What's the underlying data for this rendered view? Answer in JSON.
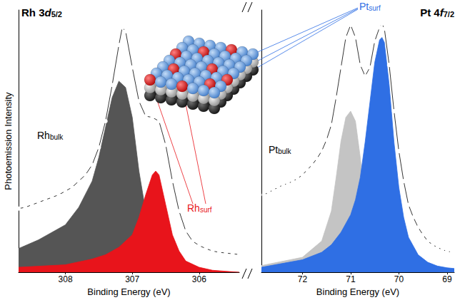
{
  "chart_data": [
    {
      "type": "line",
      "title": [
        {
          "text": "Rh 3"
        },
        {
          "text": "d",
          "style": "italic"
        },
        {
          "text": "5/2",
          "style": "subscript"
        }
      ],
      "xlabel": "Binding Energy (eV)",
      "ylabel": "Photoemission Intensity",
      "xlim": [
        308.7,
        305.4
      ],
      "xticks": [
        308,
        307,
        306
      ],
      "ylim": [
        0,
        105
      ],
      "tick_labels": "x",
      "grid": false,
      "series": [
        {
          "type": "area",
          "color": "#555555",
          "label": {
            "text": "Rh",
            "subscript": "bulk"
          },
          "x": [
            308.7,
            308.4,
            308.0,
            307.8,
            307.6,
            307.5,
            307.4,
            307.3,
            307.2,
            307.1,
            307.0,
            306.9,
            306.8,
            306.7,
            306.6,
            306.5,
            306.3,
            306.0,
            305.4
          ],
          "values": [
            9.5,
            13,
            19,
            26,
            36.5,
            46,
            58,
            70,
            76.5,
            74,
            62,
            40.5,
            24.5,
            14,
            8,
            4.5,
            2,
            0.5,
            0
          ]
        },
        {
          "type": "area",
          "color": "#e8141b",
          "label": {
            "text": "Rh",
            "subscript": "surf"
          },
          "x": [
            308.7,
            308.0,
            307.6,
            307.4,
            307.2,
            307.0,
            306.9,
            306.8,
            306.7,
            306.65,
            306.6,
            306.5,
            306.4,
            306.3,
            306.2,
            306.0,
            305.8,
            305.4
          ],
          "values": [
            2,
            3,
            5.3,
            7,
            10,
            15,
            22,
            31,
            39,
            40.5,
            39,
            27,
            15,
            8.5,
            4.5,
            2,
            0.8,
            0
          ]
        },
        {
          "type": "line",
          "color": "#000000",
          "marker": "circle-open",
          "line_style": "solid",
          "x": [
            308.7,
            308.6,
            308.5,
            308.4,
            308.3,
            308.2,
            308.1,
            308.0,
            307.9,
            307.8,
            307.7,
            307.6,
            307.5,
            307.4,
            307.3,
            307.2,
            307.15,
            307.1,
            307.0,
            306.9,
            306.8,
            306.7,
            306.6,
            306.5,
            306.4,
            306.3,
            306.2,
            306.1,
            306.0,
            305.9,
            305.8,
            305.7,
            305.6,
            305.5,
            305.4
          ],
          "values": [
            25.5,
            26,
            27,
            28,
            29,
            30,
            31,
            32.5,
            34,
            36.5,
            39,
            43,
            50,
            60.5,
            75,
            91,
            98,
            96.5,
            82,
            68.5,
            62.5,
            62,
            60.5,
            51,
            36.5,
            24.5,
            16.5,
            12.5,
            10.7,
            9.5,
            8.5,
            8,
            7.7,
            7.4,
            7.1
          ]
        }
      ]
    },
    {
      "type": "line",
      "title": [
        {
          "text": "Pt 4"
        },
        {
          "text": "f",
          "style": "italic"
        },
        {
          "text": "7/2",
          "style": "subscript"
        }
      ],
      "xlabel": "Binding Energy (eV)",
      "xlim": [
        72.85,
        68.85
      ],
      "xticks": [
        72,
        71,
        70,
        69
      ],
      "ylim": [
        0,
        105
      ],
      "tick_labels": "x",
      "grid": false,
      "series": [
        {
          "type": "area",
          "color": "#c4c4c4",
          "label": {
            "text": "Pt",
            "subscript": "bulk"
          },
          "x": [
            72.85,
            72.0,
            71.6,
            71.4,
            71.3,
            71.2,
            71.1,
            71.0,
            70.9,
            70.8,
            70.7,
            70.6,
            70.5,
            70.4,
            70.2,
            70.0,
            69.5,
            68.85
          ],
          "values": [
            2.7,
            6,
            12.5,
            24.5,
            38,
            52.5,
            62,
            64.5,
            60.5,
            46,
            27,
            15,
            9,
            5.3,
            2.4,
            1,
            0.3,
            0
          ]
        },
        {
          "type": "area",
          "color": "#2f6fe4",
          "label": {
            "text": "Pt",
            "subscript": "surf"
          },
          "x": [
            72.85,
            72.0,
            71.6,
            71.4,
            71.2,
            71.0,
            70.9,
            70.8,
            70.7,
            70.6,
            70.5,
            70.4,
            70.35,
            70.3,
            70.2,
            70.1,
            70.0,
            69.9,
            69.8,
            69.6,
            69.4,
            69.2,
            69.0,
            68.85
          ],
          "values": [
            2,
            5,
            8,
            11,
            16,
            23,
            29,
            38,
            52,
            68,
            84,
            93,
            94,
            92,
            75,
            52,
            34,
            22,
            14,
            7,
            4,
            2.5,
            1.8,
            1.5
          ]
        },
        {
          "type": "line",
          "color": "#000000",
          "marker": "circle-open",
          "line_style": "solid",
          "x": [
            72.8,
            72.7,
            72.6,
            72.5,
            72.4,
            72.3,
            72.2,
            72.1,
            72.0,
            71.9,
            71.8,
            71.7,
            71.6,
            71.5,
            71.4,
            71.3,
            71.2,
            71.1,
            71.0,
            70.9,
            70.8,
            70.7,
            70.6,
            70.5,
            70.4,
            70.35,
            70.3,
            70.2,
            70.1,
            70.0,
            69.9,
            69.8,
            69.7,
            69.6,
            69.5,
            69.4,
            69.3,
            69.2,
            69.1,
            69.0,
            68.9
          ],
          "values": [
            31,
            32,
            33,
            34,
            35,
            35.5,
            36.5,
            37.5,
            39,
            41,
            43,
            45.5,
            48.5,
            53,
            59,
            70,
            82,
            94,
            99,
            94,
            83,
            78.5,
            82,
            92.5,
            98,
            99.5,
            97.5,
            83,
            64.5,
            48.5,
            36.5,
            27,
            22,
            18,
            15,
            12.5,
            11,
            10,
            9,
            8.5,
            8
          ]
        }
      ]
    }
  ]
}
